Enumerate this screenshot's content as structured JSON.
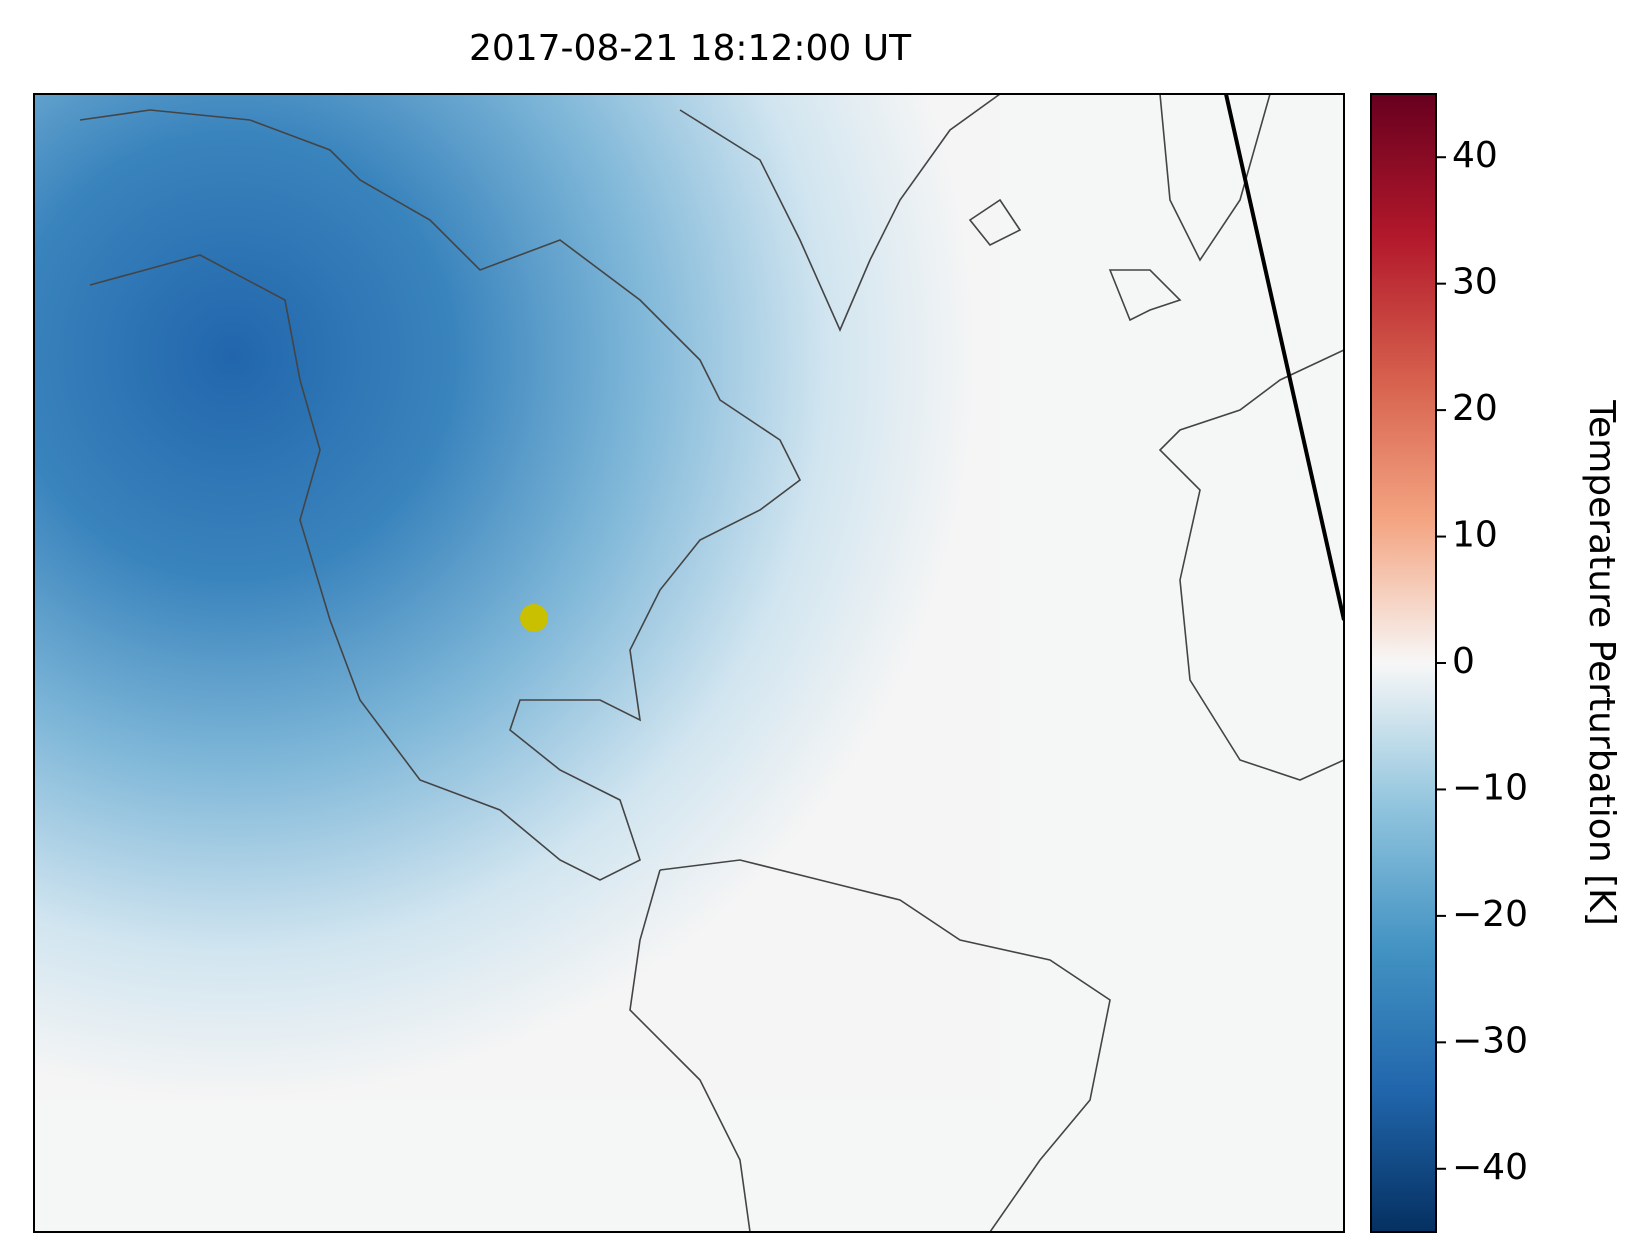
{
  "title": "2017-08-21 18:12:00 UT",
  "colorbar": {
    "label": "Temperature Perturbation [K]",
    "lim": [
      -45,
      45
    ],
    "ticks": [
      {
        "value": -40,
        "label": "−40"
      },
      {
        "value": -30,
        "label": "−30"
      },
      {
        "value": -20,
        "label": "−20"
      },
      {
        "value": -10,
        "label": "−10"
      },
      0,
      10,
      20,
      30,
      40
    ]
  }
}
